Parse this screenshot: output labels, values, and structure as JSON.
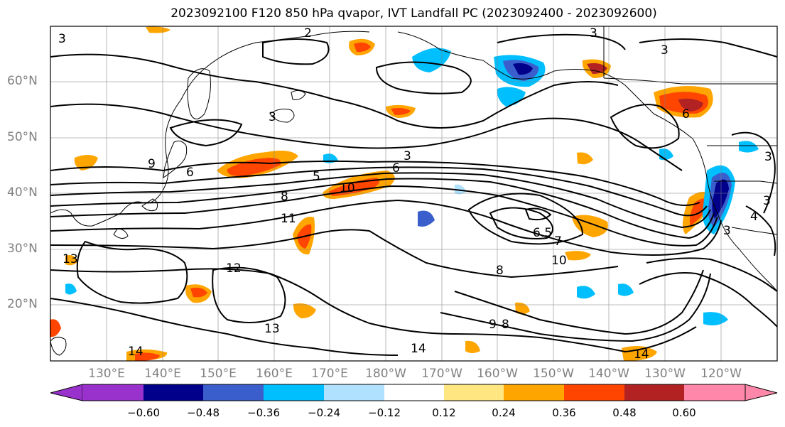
{
  "title": "2023092100 F120 850 hPa qvapor, IVT Landfall PC (2023092400 - 2023092600)",
  "map": {
    "lat_labels": [
      "60°N",
      "50°N",
      "40°N",
      "30°N",
      "20°N"
    ],
    "lon_labels": [
      "130°E",
      "140°E",
      "150°E",
      "160°E",
      "170°E",
      "180°W",
      "170°W",
      "160°W",
      "150°W",
      "140°W",
      "130°W",
      "120°W"
    ],
    "contour_labels": [
      "3",
      "2",
      "3",
      "3",
      "3",
      "6",
      "3",
      "5",
      "6",
      "8",
      "10",
      "11",
      "7",
      "6.5",
      "10",
      "12",
      "13",
      "14",
      "14",
      "13",
      "8",
      "9",
      "8",
      "14",
      "3",
      "3",
      "4",
      "3",
      "9",
      "6"
    ]
  },
  "colorbar": {
    "ticks": [
      "−0.60",
      "−0.48",
      "−0.36",
      "−0.24",
      "−0.12",
      "0.12",
      "0.24",
      "0.36",
      "0.48",
      "0.60"
    ],
    "colors": [
      "#9932cc",
      "#00008b",
      "#3a5fcd",
      "#00bfff",
      "#b0e2ff",
      "#ffffff",
      "#ffe680",
      "#ffa500",
      "#ff4500",
      "#b22222",
      "#ff88aa"
    ]
  },
  "colors": {
    "ocean": "#ffffff",
    "contour": "#000000",
    "grid": "#808080"
  }
}
